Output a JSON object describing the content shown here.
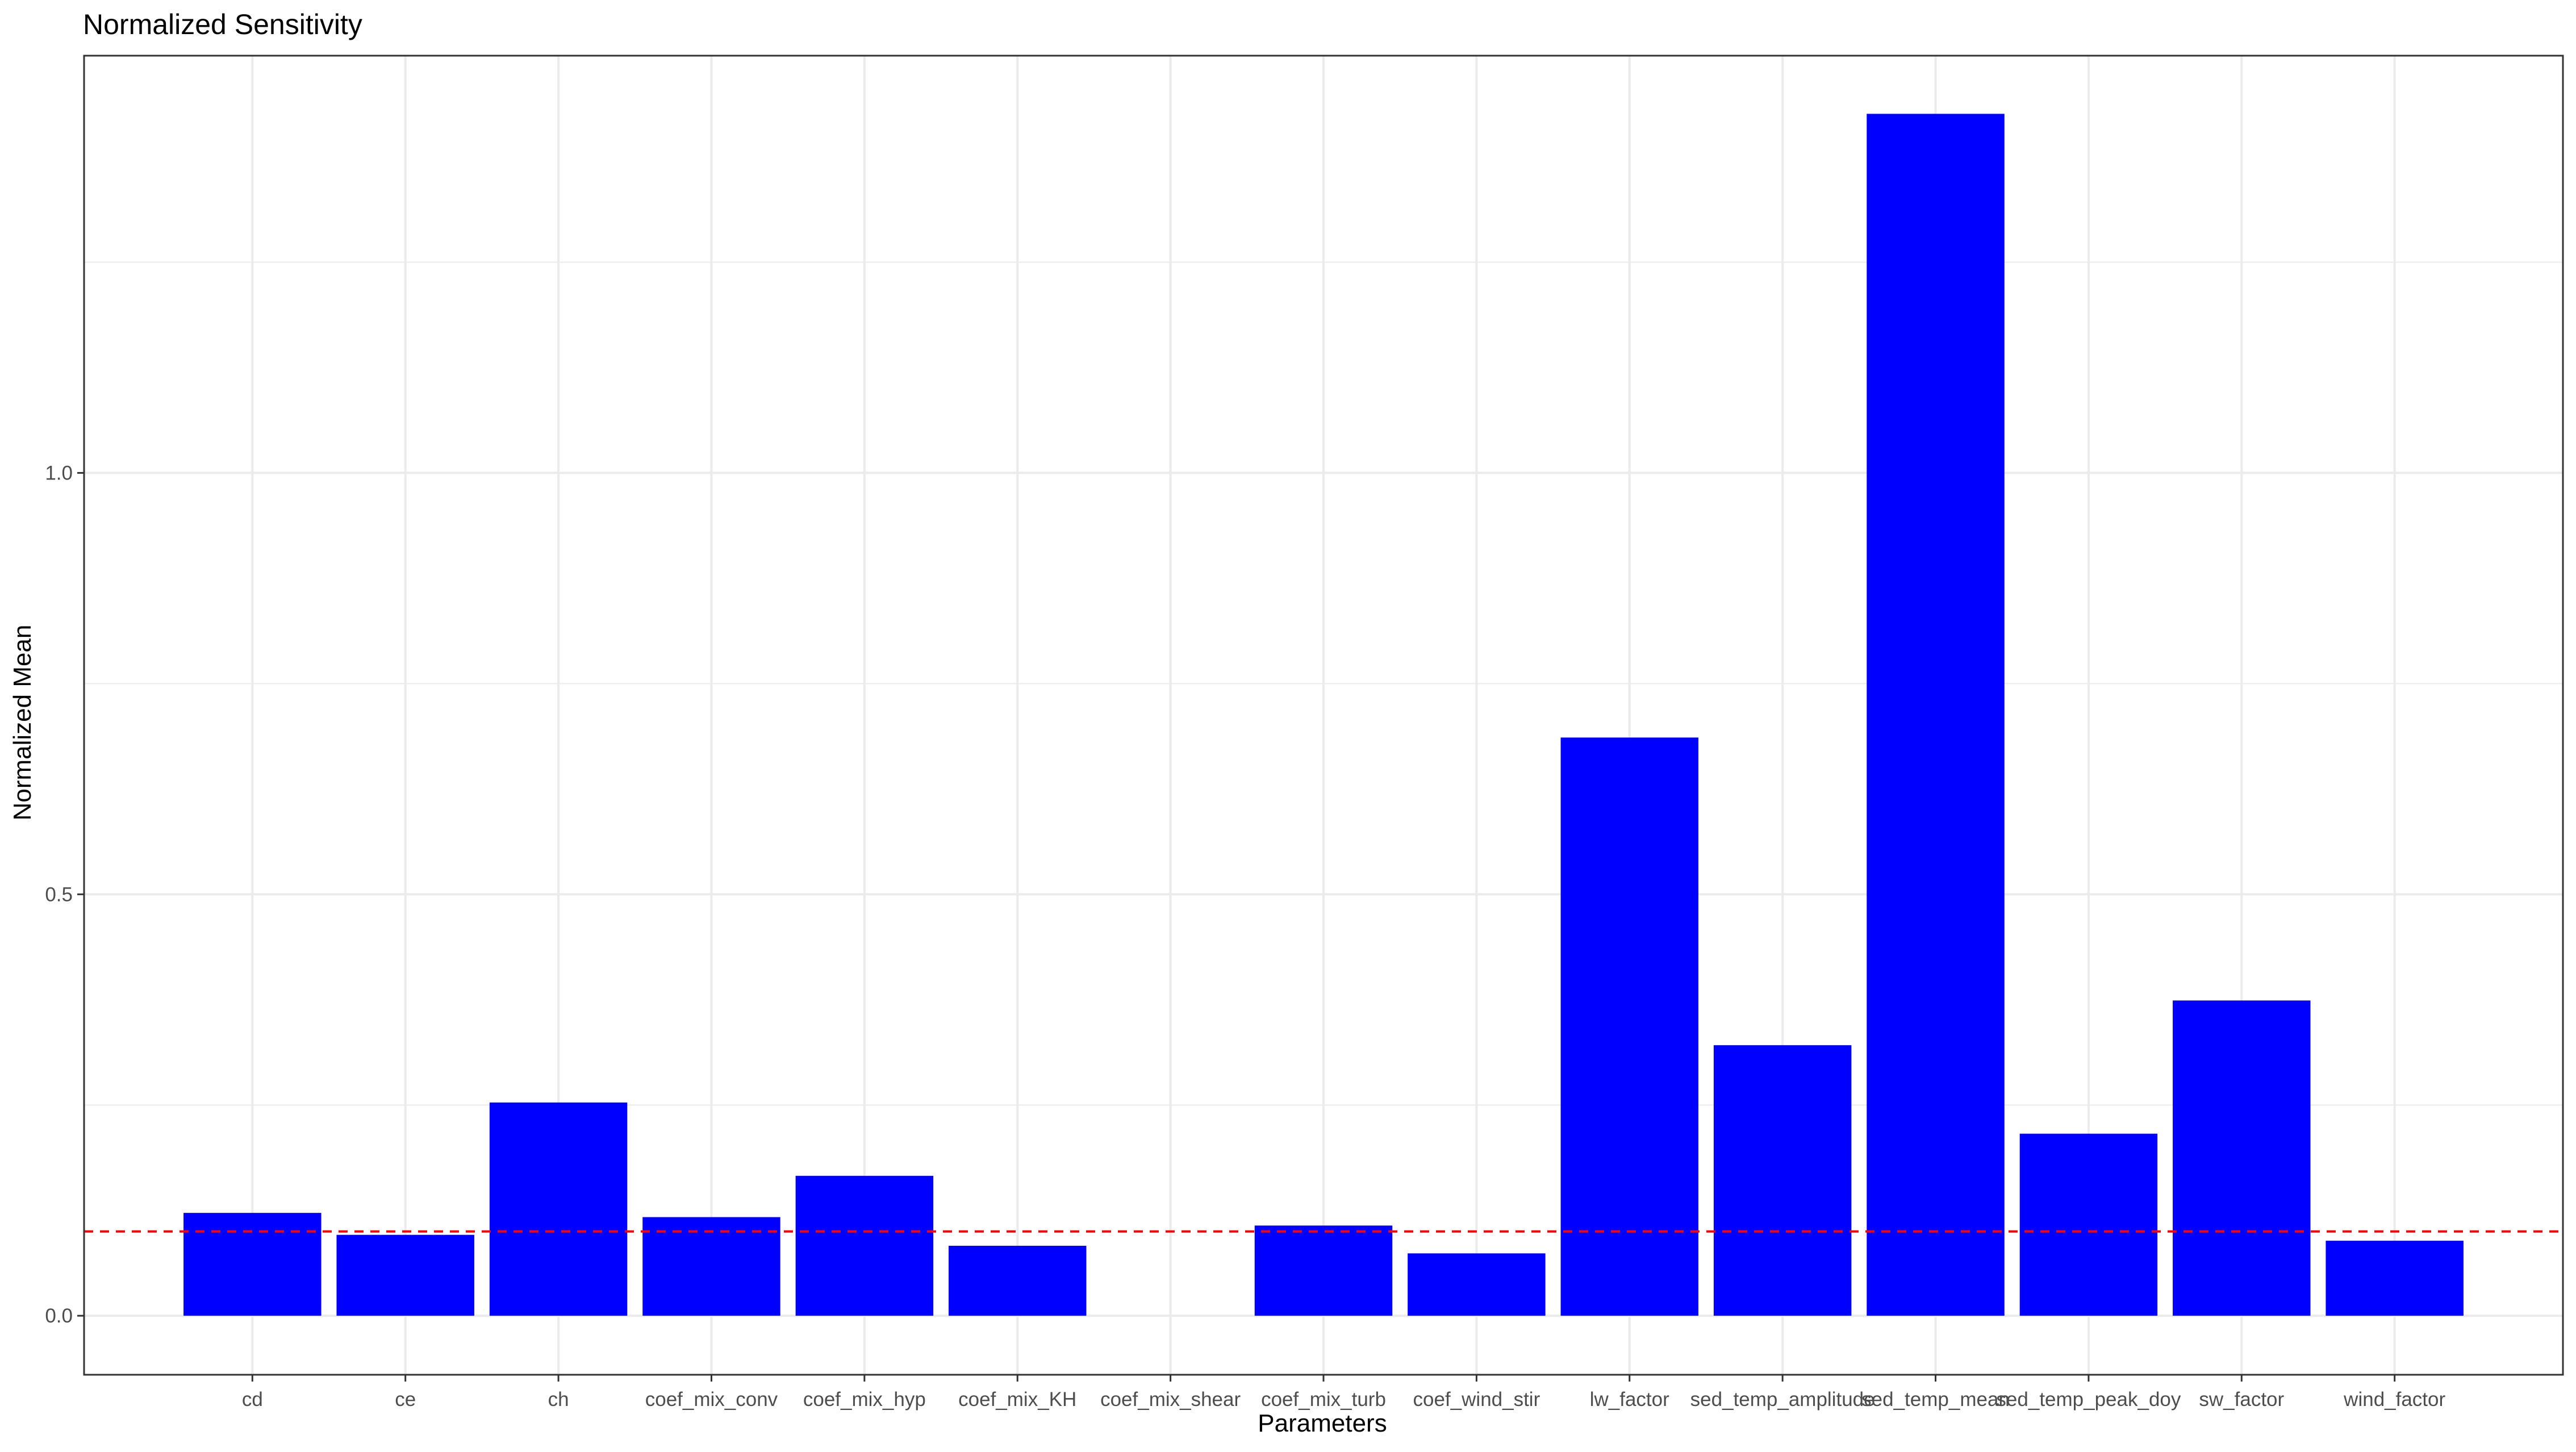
{
  "chart_data": {
    "type": "bar",
    "title": "Normalized Sensitivity",
    "xlabel": "Parameters",
    "ylabel": "Normalized Mean",
    "categories": [
      "cd",
      "ce",
      "ch",
      "coef_mix_conv",
      "coef_mix_hyp",
      "coef_mix_KH",
      "coef_mix_shear",
      "coef_mix_turb",
      "coef_wind_stir",
      "lw_factor",
      "sed_temp_amplitude",
      "sed_temp_mean",
      "sed_temp_peak_doy",
      "sw_factor",
      "wind_factor"
    ],
    "values": [
      0.122,
      0.096,
      0.253,
      0.117,
      0.166,
      0.083,
      0.0,
      0.107,
      0.074,
      0.686,
      0.321,
      1.426,
      0.216,
      0.374,
      0.089
    ],
    "ylim": [
      -0.07,
      1.495
    ],
    "yticks": [
      0.0,
      0.5,
      1.0
    ],
    "ytick_labels": [
      "0.0",
      "0.5",
      "1.0"
    ],
    "minor_yticks": [
      0.25,
      0.75,
      1.25
    ],
    "threshold": 0.1,
    "grid": true,
    "legend": "none",
    "colors": {
      "bar": "#0000ff",
      "threshold_line": "#ff0000",
      "grid": "#ebebeb",
      "panel_border": "#333333",
      "text": "#000000",
      "tick_text": "#4d4d4d"
    }
  }
}
